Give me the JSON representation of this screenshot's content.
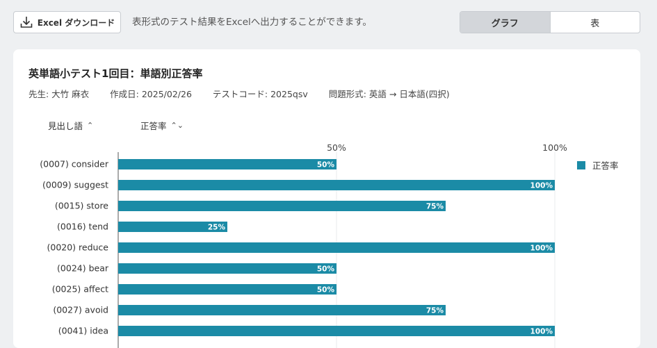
{
  "toolbar": {
    "excel_label": "Excel ダウンロード",
    "description": "表形式のテスト結果をExcelへ出力することができます。",
    "view_graph": "グラフ",
    "view_table": "表"
  },
  "card": {
    "title": "英単語小テスト1回目：単語別正答率",
    "teacher": "先生: 大竹 麻衣",
    "created": "作成日: 2025/02/26",
    "test_code": "テストコード: 2025qsv",
    "question_format": "問題形式: 英語 → 日本語(四択)"
  },
  "sort": {
    "word_label": "見出し語",
    "word_arrow": "⌃",
    "rate_label": "正答率",
    "rate_arrow": "⌃⌄"
  },
  "legend": {
    "label": "正答率"
  },
  "colors": {
    "bar": "#1b8ba6",
    "accent_active": "#d3d6da"
  },
  "chart_data": {
    "type": "bar",
    "orientation": "horizontal",
    "categories": [
      "(0007) consider",
      "(0009) suggest",
      "(0015) store",
      "(0016) tend",
      "(0020) reduce",
      "(0024) bear",
      "(0025) affect",
      "(0027) avoid",
      "(0041) idea"
    ],
    "values": [
      50,
      100,
      75,
      25,
      100,
      50,
      50,
      75,
      100
    ],
    "value_labels": [
      "50%",
      "100%",
      "75%",
      "25%",
      "100%",
      "50%",
      "50%",
      "75%",
      "100%"
    ],
    "xticks": [
      "50%",
      "100%"
    ],
    "xtick_values": [
      50,
      100
    ],
    "xlim": [
      0,
      100
    ],
    "series_name": "正答率",
    "legend_position": "right"
  }
}
